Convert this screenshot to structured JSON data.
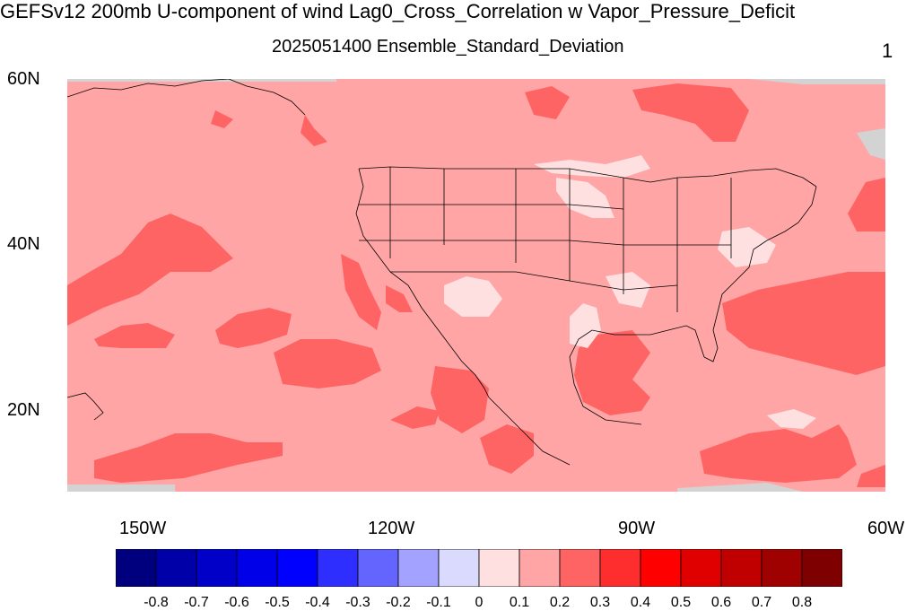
{
  "title": "GEFSv12 200mb U-component of wind Lag0_Cross_Correlation w Vapor_Pressure_Deficit",
  "subtitle": "2025051400 Ensemble_Standard_Deviation",
  "panel_number": "1",
  "map": {
    "lon_range": [
      -160,
      -60
    ],
    "lat_range": [
      10,
      60
    ],
    "lat_labels": [
      "60N",
      "40N",
      "20N"
    ],
    "lon_labels": [
      "150W",
      "120W",
      "90W",
      "60W"
    ],
    "background_color": "#FFA5A5",
    "missing_color": "#D3D3D3"
  },
  "colorbar": {
    "colors": [
      "#00007F",
      "#0000A9",
      "#0000C8",
      "#0000E8",
      "#0000FF",
      "#2E2EFF",
      "#6464FF",
      "#A3A3FF",
      "#DADAFF",
      "#FFE0E0",
      "#FFA5A5",
      "#FF6464",
      "#FF2E2E",
      "#FF0000",
      "#E00000",
      "#C00000",
      "#9F0000",
      "#7F0000"
    ],
    "labels": [
      "-0.8",
      "-0.7",
      "-0.6",
      "-0.5",
      "-0.4",
      "-0.3",
      "-0.2",
      "-0.1",
      "0",
      "0.1",
      "0.2",
      "0.3",
      "0.4",
      "0.5",
      "0.6",
      "0.7",
      "0.8"
    ]
  }
}
